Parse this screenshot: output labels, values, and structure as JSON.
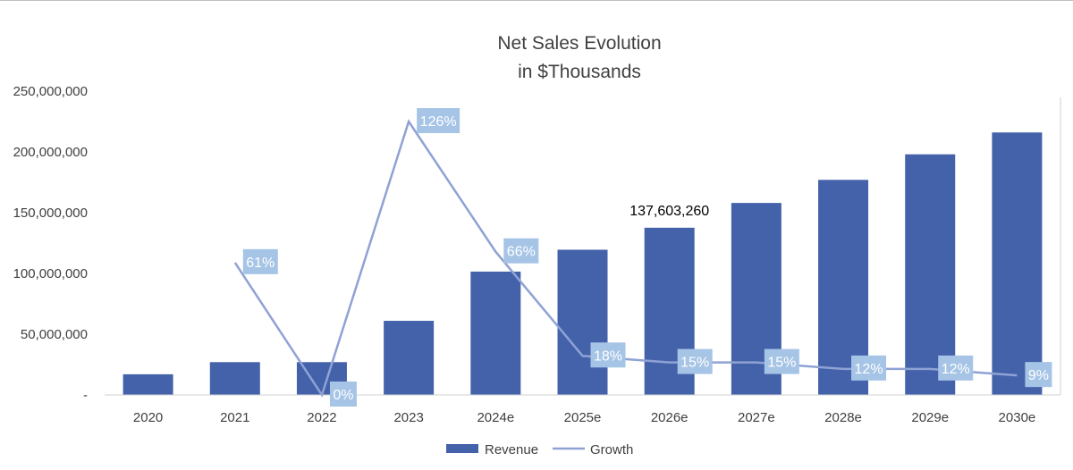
{
  "chart_data": {
    "type": "bar",
    "title": "Net Sales Evolution",
    "subtitle": "in $Thousands",
    "categories": [
      "2020",
      "2021",
      "2022",
      "2023",
      "2024e",
      "2025e",
      "2026e",
      "2027e",
      "2028e",
      "2029e",
      "2030e"
    ],
    "series": [
      {
        "name": "Revenue",
        "type": "bar",
        "color": "#4462aa",
        "values": [
          17000000,
          27000000,
          27000000,
          61000000,
          101500000,
          119500000,
          137603260,
          158000000,
          177000000,
          198000000,
          216000000
        ]
      },
      {
        "name": "Growth",
        "type": "line",
        "color": "#8fa2d4",
        "values": [
          null,
          61,
          0,
          126,
          66,
          18,
          15,
          15,
          12,
          12,
          9
        ],
        "labels": [
          "",
          "61%",
          "0%",
          "126%",
          "66%",
          "18%",
          "15%",
          "15%",
          "12%",
          "12%",
          "9%"
        ]
      }
    ],
    "yticks": [
      "-",
      "50,000,000",
      "100,000,000",
      "150,000,000",
      "200,000,000",
      "250,000,000"
    ],
    "ylim": [
      0,
      250000000
    ],
    "y2lim": [
      0,
      140
    ],
    "annotations": [
      {
        "category": "2026e",
        "text": "137,603,260"
      }
    ],
    "legend": {
      "position": "bottom",
      "items": [
        "Revenue",
        "Growth"
      ]
    },
    "label_box_color": "#a6c4e6",
    "grid": false
  }
}
